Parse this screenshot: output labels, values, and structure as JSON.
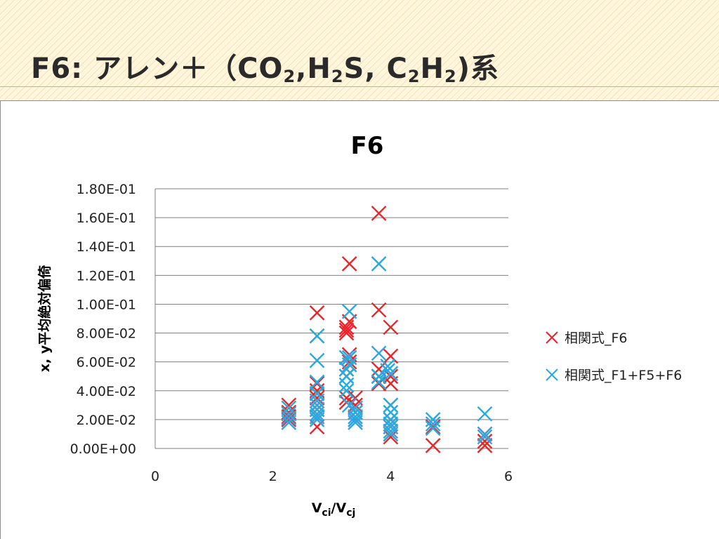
{
  "slide": {
    "title_prefix": "F6: アレン＋（CO",
    "title_tokens": [
      {
        "t": "F6: アレン＋（CO",
        "sub": false
      },
      {
        "t": "2",
        "sub": true
      },
      {
        "t": ",H",
        "sub": false
      },
      {
        "t": "2",
        "sub": true
      },
      {
        "t": "S, C",
        "sub": false
      },
      {
        "t": "2",
        "sub": true
      },
      {
        "t": "H",
        "sub": false
      },
      {
        "t": "2",
        "sub": true
      },
      {
        "t": ")系",
        "sub": false
      }
    ]
  },
  "colors": {
    "series_red": "#e8262a",
    "series_blue": "#2aa8e0",
    "grid": "#7f7f7f",
    "slide_bg": "#fff6dd"
  },
  "chart_data": {
    "type": "scatter",
    "title": "F6",
    "xlabel": "V_ci/V_cj",
    "xlabel_parts": {
      "main1": "V",
      "sub1": "ci",
      "slash": "/V",
      "sub2": "cj"
    },
    "ylabel": "x, y平均絶対偏倚",
    "xlim": [
      0,
      6
    ],
    "ylim": [
      0,
      0.18
    ],
    "xticks": [
      0,
      2,
      4,
      6
    ],
    "xtick_labels": [
      "0",
      "2",
      "4",
      "6"
    ],
    "yticks": [
      0,
      0.02,
      0.04,
      0.06,
      0.08,
      0.1,
      0.12,
      0.14,
      0.16,
      0.18
    ],
    "ytick_labels": [
      "0.00E+00",
      "2.00E-02",
      "4.00E-02",
      "6.00E-02",
      "8.00E-02",
      "1.00E-01",
      "1.20E-01",
      "1.40E-01",
      "1.60E-01",
      "1.80E-01"
    ],
    "grid": "horizontal",
    "legend_position": "right",
    "marker": "x",
    "series": [
      {
        "name": "相関式_F6",
        "color": "#e8262a",
        "points": [
          [
            2.27,
            0.03
          ],
          [
            2.27,
            0.025
          ],
          [
            2.27,
            0.022
          ],
          [
            2.27,
            0.02
          ],
          [
            2.75,
            0.094
          ],
          [
            2.75,
            0.078
          ],
          [
            2.75,
            0.045
          ],
          [
            2.75,
            0.04
          ],
          [
            2.75,
            0.035
          ],
          [
            2.75,
            0.03
          ],
          [
            2.75,
            0.027
          ],
          [
            2.75,
            0.022
          ],
          [
            2.75,
            0.015
          ],
          [
            3.25,
            0.084
          ],
          [
            3.25,
            0.082
          ],
          [
            3.25,
            0.08
          ],
          [
            3.25,
            0.055
          ],
          [
            3.25,
            0.05
          ],
          [
            3.25,
            0.035
          ],
          [
            3.25,
            0.032
          ],
          [
            3.3,
            0.128
          ],
          [
            3.3,
            0.088
          ],
          [
            3.3,
            0.065
          ],
          [
            3.3,
            0.06
          ],
          [
            3.4,
            0.035
          ],
          [
            3.4,
            0.03
          ],
          [
            3.4,
            0.025
          ],
          [
            3.4,
            0.02
          ],
          [
            3.8,
            0.163
          ],
          [
            3.8,
            0.096
          ],
          [
            3.8,
            0.055
          ],
          [
            3.8,
            0.05
          ],
          [
            3.8,
            0.045
          ],
          [
            4.0,
            0.084
          ],
          [
            4.0,
            0.064
          ],
          [
            4.0,
            0.05
          ],
          [
            4.0,
            0.045
          ],
          [
            4.0,
            0.03
          ],
          [
            4.0,
            0.02
          ],
          [
            4.0,
            0.015
          ],
          [
            4.0,
            0.01
          ],
          [
            4.0,
            0.008
          ],
          [
            4.72,
            0.015
          ],
          [
            4.72,
            0.002
          ],
          [
            5.6,
            0.01
          ],
          [
            5.6,
            0.005
          ],
          [
            5.6,
            0.002
          ]
        ]
      },
      {
        "name": "相関式_F1+F5+F6",
        "color": "#2aa8e0",
        "points": [
          [
            2.27,
            0.028
          ],
          [
            2.27,
            0.024
          ],
          [
            2.27,
            0.021
          ],
          [
            2.27,
            0.018
          ],
          [
            2.75,
            0.078
          ],
          [
            2.75,
            0.061
          ],
          [
            2.75,
            0.046
          ],
          [
            2.75,
            0.038
          ],
          [
            2.75,
            0.033
          ],
          [
            2.75,
            0.03
          ],
          [
            2.75,
            0.027
          ],
          [
            2.75,
            0.024
          ],
          [
            2.75,
            0.022
          ],
          [
            2.75,
            0.02
          ],
          [
            3.25,
            0.063
          ],
          [
            3.25,
            0.055
          ],
          [
            3.25,
            0.05
          ],
          [
            3.25,
            0.044
          ],
          [
            3.25,
            0.04
          ],
          [
            3.3,
            0.095
          ],
          [
            3.3,
            0.063
          ],
          [
            3.3,
            0.058
          ],
          [
            3.3,
            0.03
          ],
          [
            3.4,
            0.028
          ],
          [
            3.4,
            0.025
          ],
          [
            3.4,
            0.022
          ],
          [
            3.4,
            0.02
          ],
          [
            3.4,
            0.018
          ],
          [
            3.8,
            0.128
          ],
          [
            3.8,
            0.066
          ],
          [
            3.8,
            0.05
          ],
          [
            3.8,
            0.046
          ],
          [
            3.95,
            0.057
          ],
          [
            3.95,
            0.054
          ],
          [
            4.0,
            0.052
          ],
          [
            4.0,
            0.03
          ],
          [
            4.0,
            0.025
          ],
          [
            4.0,
            0.02
          ],
          [
            4.0,
            0.017
          ],
          [
            4.0,
            0.015
          ],
          [
            4.0,
            0.012
          ],
          [
            4.0,
            0.01
          ],
          [
            4.72,
            0.02
          ],
          [
            4.72,
            0.017
          ],
          [
            4.72,
            0.014
          ],
          [
            5.6,
            0.024
          ],
          [
            5.6,
            0.01
          ],
          [
            5.6,
            0.008
          ]
        ]
      }
    ]
  }
}
